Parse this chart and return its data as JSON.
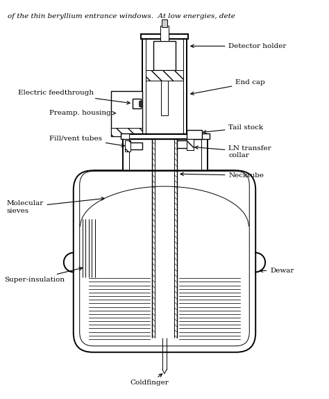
{
  "bg_color": "#ffffff",
  "lc": "#000000",
  "labels": {
    "detector_holder": "Detector holder",
    "end_cap": "End cap",
    "electric_feedthrough": "Electric feedthrough",
    "preamp_housing": "Preamp. housing",
    "fill_vent_tubes": "Fill/vent tubes",
    "tail_stock": "Tail stock",
    "ln_transfer": "LN transfer\ncollar",
    "necktube": "Necktube",
    "molecular_sieves": "Molecular\nsieves",
    "dewar": "Dewar",
    "super_insulation": "Super-insulation",
    "coldfinger": "Coldfinger"
  },
  "top_text": "of the thin beryllium entrance windows.  At low energies, dete",
  "figsize": [
    4.74,
    5.74
  ],
  "dpi": 100
}
